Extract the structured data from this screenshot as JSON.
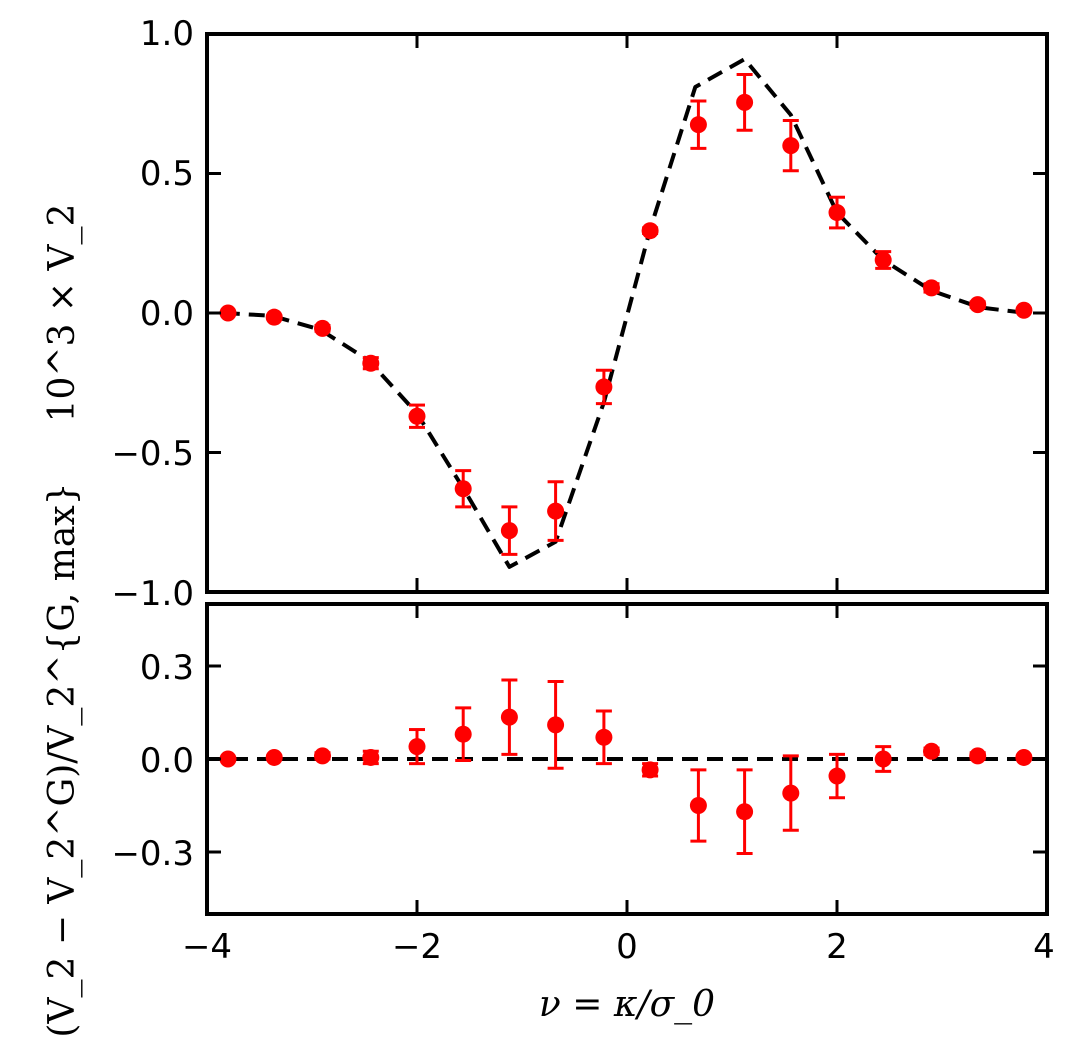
{
  "chart_data": [
    {
      "type": "scatter",
      "panel": "top",
      "title": "",
      "xlabel": "",
      "ylabel": "10^3 × V_2",
      "xlim": [
        -4,
        4
      ],
      "ylim": [
        -1.0,
        1.0
      ],
      "yticks": [
        -1.0,
        -0.5,
        0.0,
        0.5,
        1.0
      ],
      "ytick_labels": [
        "−1.0",
        "−0.5",
        "0.0",
        "0.5",
        "1.0"
      ],
      "xticks": [
        -4,
        -2,
        0,
        2,
        4
      ],
      "grid": false,
      "colors": {
        "points": "#ff0000",
        "model": "#000000"
      },
      "series": [
        {
          "name": "model",
          "style": "dashed-line",
          "x": [
            -3.84,
            -3.38,
            -2.92,
            -2.46,
            -2.0,
            -1.54,
            -1.12,
            -0.68,
            -0.22,
            0.22,
            0.65,
            1.12,
            1.56,
            2.0,
            2.44,
            2.9,
            3.36,
            3.8
          ],
          "y": [
            0.0,
            -0.01,
            -0.06,
            -0.17,
            -0.36,
            -0.64,
            -0.91,
            -0.82,
            -0.32,
            0.3,
            0.81,
            0.91,
            0.71,
            0.36,
            0.19,
            0.08,
            0.02,
            0.0
          ]
        },
        {
          "name": "measurements",
          "style": "points-with-errorbars",
          "x": [
            -3.8,
            -3.36,
            -2.9,
            -2.44,
            -2.0,
            -1.56,
            -1.12,
            -0.68,
            -0.22,
            0.22,
            0.68,
            1.12,
            1.56,
            2.0,
            2.44,
            2.9,
            3.34,
            3.78
          ],
          "y": [
            0.0,
            -0.015,
            -0.055,
            -0.18,
            -0.37,
            -0.63,
            -0.78,
            -0.71,
            -0.265,
            0.295,
            0.675,
            0.755,
            0.6,
            0.36,
            0.19,
            0.09,
            0.03,
            0.01
          ],
          "yerr": [
            0.0,
            0.005,
            0.01,
            0.02,
            0.04,
            0.065,
            0.085,
            0.105,
            0.06,
            0.01,
            0.085,
            0.1,
            0.09,
            0.055,
            0.03,
            0.015,
            0.01,
            0.005
          ]
        }
      ]
    },
    {
      "type": "scatter",
      "panel": "bottom",
      "title": "",
      "xlabel": "ν = κ/σ_0",
      "ylabel": "(V_2 − V_2^G)/V_2^{G, max}",
      "xlim": [
        -4,
        4
      ],
      "ylim": [
        -0.5,
        0.5
      ],
      "yticks": [
        -0.3,
        0.0,
        0.3
      ],
      "ytick_labels": [
        "−0.3",
        "0.0",
        "0.3"
      ],
      "xticks": [
        -4,
        -2,
        0,
        2,
        4
      ],
      "xtick_labels": [
        "−4",
        "−2",
        "0",
        "2",
        "4"
      ],
      "grid": false,
      "colors": {
        "points": "#ff0000",
        "model": "#000000"
      },
      "series": [
        {
          "name": "zero reference",
          "style": "dashed-line",
          "x": [
            -4,
            4
          ],
          "y": [
            0.0,
            0.0
          ]
        },
        {
          "name": "residuals",
          "style": "points-with-errorbars",
          "x": [
            -3.8,
            -3.36,
            -2.9,
            -2.44,
            -2.0,
            -1.56,
            -1.12,
            -0.68,
            -0.22,
            0.22,
            0.68,
            1.12,
            1.56,
            2.0,
            2.44,
            2.9,
            3.34,
            3.78
          ],
          "y": [
            0.0,
            0.005,
            0.01,
            0.005,
            0.04,
            0.08,
            0.135,
            0.11,
            0.07,
            -0.035,
            -0.15,
            -0.17,
            -0.11,
            -0.055,
            0.0,
            0.025,
            0.01,
            0.005
          ],
          "yerr": [
            0.0,
            0.005,
            0.01,
            0.02,
            0.055,
            0.085,
            0.12,
            0.14,
            0.085,
            0.02,
            0.115,
            0.135,
            0.12,
            0.07,
            0.04,
            0.01,
            0.01,
            0.005
          ]
        }
      ]
    }
  ]
}
